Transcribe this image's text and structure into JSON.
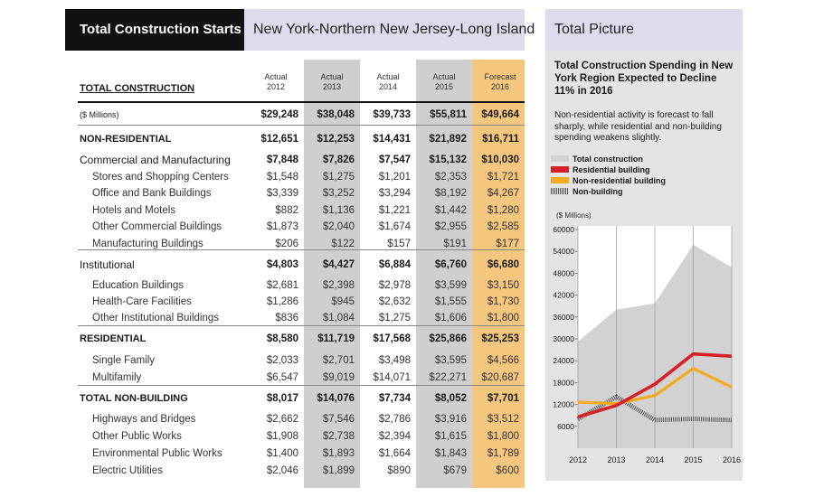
{
  "header": {
    "title": "Total Construction Starts",
    "region": "New York-Northern New Jersey-Long Island"
  },
  "table": {
    "section_label": "TOTAL CONSTRUCTION",
    "columns": [
      {
        "kind": "Actual",
        "year": "2012"
      },
      {
        "kind": "Actual",
        "year": "2013"
      },
      {
        "kind": "Actual",
        "year": "2014"
      },
      {
        "kind": "Actual",
        "year": "2015"
      },
      {
        "kind": "Forecast",
        "year": "2016"
      }
    ],
    "rows": [
      {
        "label": "($ Millions)",
        "style": "units",
        "values": [
          "$29,248",
          "$38,048",
          "$39,733",
          "$55,811",
          "$49,664"
        ]
      },
      {
        "label": "NON-RESIDENTIAL",
        "style": "sec",
        "values": [
          "$12,651",
          "$12,253",
          "$14,431",
          "$21,892",
          "$16,711"
        ]
      },
      {
        "label": "Commercial and Manufacturing",
        "style": "sub",
        "values": [
          "$7,848",
          "$7,826",
          "$7,547",
          "$15,132",
          "$10,030"
        ]
      },
      {
        "label": "Stores and Shopping Centers",
        "style": "item",
        "values": [
          "$1,548",
          "$1,275",
          "$1,201",
          "$2,353",
          "$1,721"
        ]
      },
      {
        "label": "Office and Bank Buildings",
        "style": "item",
        "values": [
          "$3,339",
          "$3,252",
          "$3,294",
          "$8,192",
          "$4,267"
        ]
      },
      {
        "label": "Hotels and Motels",
        "style": "item",
        "values": [
          "$882",
          "$1,136",
          "$1,221",
          "$1,442",
          "$1,280"
        ]
      },
      {
        "label": "Other Commercial Buildings",
        "style": "item",
        "values": [
          "$1,873",
          "$2,040",
          "$1,674",
          "$2,955",
          "$2,585"
        ]
      },
      {
        "label": "Manufacturing Buildings",
        "style": "item",
        "values": [
          "$206",
          "$122",
          "$157",
          "$191",
          "$177"
        ]
      },
      {
        "label": "Institutional",
        "style": "sub",
        "values": [
          "$4,803",
          "$4,427",
          "$6,884",
          "$6,760",
          "$6,680"
        ]
      },
      {
        "label": "Education Buildings",
        "style": "item",
        "values": [
          "$2,681",
          "$2,398",
          "$2,978",
          "$3,599",
          "$3,150"
        ]
      },
      {
        "label": "Health-Care Facilities",
        "style": "item",
        "values": [
          "$1,286",
          "$945",
          "$2,632",
          "$1,555",
          "$1,730"
        ]
      },
      {
        "label": "Other Institutional Buildings",
        "style": "item",
        "values": [
          "$836",
          "$1,084",
          "$1,275",
          "$1,606",
          "$1,800"
        ]
      },
      {
        "label": "RESIDENTIAL",
        "style": "sec",
        "values": [
          "$8,580",
          "$11,719",
          "$17,568",
          "$25,866",
          "$25,253"
        ]
      },
      {
        "label": "Single Family",
        "style": "item",
        "values": [
          "$2,033",
          "$2,701",
          "$3,498",
          "$3,595",
          "$4,566"
        ]
      },
      {
        "label": "Multifamily",
        "style": "item",
        "values": [
          "$6,547",
          "$9,019",
          "$14,071",
          "$22,271",
          "$20,687"
        ]
      },
      {
        "label": "TOTAL NON-BUILDING",
        "style": "sec",
        "values": [
          "$8,017",
          "$14,076",
          "$7,734",
          "$8,052",
          "$7,701"
        ]
      },
      {
        "label": "Highways and Bridges",
        "style": "item",
        "values": [
          "$2,662",
          "$7,546",
          "$2,786",
          "$3,916",
          "$3,512"
        ]
      },
      {
        "label": "Other Public Works",
        "style": "item",
        "values": [
          "$1,908",
          "$2,738",
          "$2,394",
          "$1,615",
          "$1,800"
        ]
      },
      {
        "label": "Environmental Public Works",
        "style": "item",
        "values": [
          "$1,400",
          "$1,893",
          "$1,664",
          "$1,843",
          "$1,789"
        ]
      },
      {
        "label": "Electric Utilities",
        "style": "item",
        "values": [
          "$2,046",
          "$1,899",
          "$890",
          "$679",
          "$600"
        ]
      }
    ]
  },
  "panel": {
    "head": "Total Picture",
    "chart_title": "Total Construction Spending in New York Region Expected to Decline 11% in 2016",
    "chart_subtitle": "Non-residential activity is forecast to fall sharply, while residential and non-building spending weakens slightly."
  },
  "colors": {
    "total": "#d2d2d2",
    "residential": "#d62027",
    "non_residential": "#f2ab1f",
    "non_building": "#666666",
    "highlight_gray": "#cfcfcf",
    "highlight_orange": "#f5c67d"
  },
  "chart_data": {
    "type": "line",
    "ylabel": "($ Millions)",
    "x": [
      2012,
      2013,
      2014,
      2015,
      2016
    ],
    "x_tick_labels": [
      "2012",
      "2013",
      "2014",
      "2015",
      "2016"
    ],
    "y_ticks": [
      6000,
      12000,
      18000,
      24000,
      30000,
      36000,
      42000,
      48000,
      54000,
      60000
    ],
    "y_tick_labels": [
      "6000",
      "12000",
      "18000",
      "24000",
      "30000",
      "36000",
      "42000",
      "48000",
      "54000",
      "60000"
    ],
    "ylim": [
      0,
      61000
    ],
    "grid": "vertical",
    "legend_position": "top",
    "series": [
      {
        "name": "Total construction",
        "kind": "area",
        "values": [
          29248,
          38048,
          39733,
          55811,
          49664
        ]
      },
      {
        "name": "Residential building",
        "kind": "line",
        "values": [
          8580,
          11719,
          17568,
          25866,
          25253
        ]
      },
      {
        "name": "Non-residential building",
        "kind": "line",
        "values": [
          12651,
          12253,
          14431,
          21892,
          16711
        ]
      },
      {
        "name": "Non-building",
        "kind": "line-hatched",
        "values": [
          8017,
          14076,
          7734,
          8052,
          7701
        ]
      }
    ]
  }
}
